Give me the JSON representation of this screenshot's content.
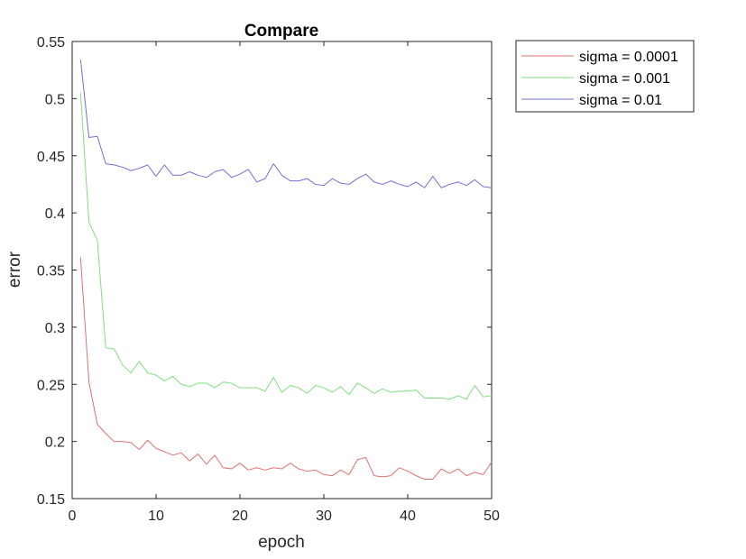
{
  "chart_data": {
    "type": "line",
    "title": "Compare",
    "xlabel": "epoch",
    "ylabel": "error",
    "xlim": [
      0,
      50
    ],
    "ylim": [
      0.15,
      0.55
    ],
    "xticks": [
      0,
      10,
      20,
      30,
      40,
      50
    ],
    "xtick_labels": [
      "0",
      "10",
      "20",
      "30",
      "40",
      "50"
    ],
    "yticks": [
      0.15,
      0.2,
      0.25,
      0.3,
      0.35,
      0.4,
      0.45,
      0.5,
      0.55
    ],
    "ytick_labels": [
      "0.15",
      "0.2",
      "0.25",
      "0.3",
      "0.35",
      "0.4",
      "0.45",
      "0.5",
      "0.55"
    ],
    "grid": false,
    "legend_position": "outside-top-right",
    "x": [
      1,
      2,
      3,
      4,
      5,
      6,
      7,
      8,
      9,
      10,
      11,
      12,
      13,
      14,
      15,
      16,
      17,
      18,
      19,
      20,
      21,
      22,
      23,
      24,
      25,
      26,
      27,
      28,
      29,
      30,
      31,
      32,
      33,
      34,
      35,
      36,
      37,
      38,
      39,
      40,
      41,
      42,
      43,
      44,
      45,
      46,
      47,
      48,
      49,
      50
    ],
    "series": [
      {
        "name": "sigma = 0.0001",
        "color": "#e07070",
        "values": [
          0.361,
          0.252,
          0.215,
          0.207,
          0.2,
          0.2,
          0.199,
          0.193,
          0.201,
          0.194,
          0.191,
          0.188,
          0.19,
          0.183,
          0.189,
          0.18,
          0.188,
          0.177,
          0.176,
          0.181,
          0.175,
          0.177,
          0.175,
          0.177,
          0.176,
          0.181,
          0.176,
          0.174,
          0.175,
          0.171,
          0.17,
          0.175,
          0.171,
          0.184,
          0.186,
          0.17,
          0.169,
          0.17,
          0.177,
          0.174,
          0.17,
          0.167,
          0.167,
          0.176,
          0.172,
          0.176,
          0.17,
          0.173,
          0.171,
          0.182
        ]
      },
      {
        "name": "sigma = 0.001",
        "color": "#7ee07e",
        "values": [
          0.505,
          0.392,
          0.376,
          0.282,
          0.281,
          0.267,
          0.26,
          0.27,
          0.26,
          0.258,
          0.253,
          0.257,
          0.25,
          0.248,
          0.251,
          0.251,
          0.247,
          0.252,
          0.251,
          0.247,
          0.247,
          0.247,
          0.244,
          0.256,
          0.243,
          0.249,
          0.247,
          0.242,
          0.249,
          0.247,
          0.243,
          0.248,
          0.241,
          0.251,
          0.247,
          0.242,
          0.246,
          0.243,
          0.244,
          0.244,
          0.245,
          0.238,
          0.238,
          0.238,
          0.237,
          0.24,
          0.237,
          0.249,
          0.239,
          0.24
        ]
      },
      {
        "name": "sigma = 0.01",
        "color": "#7070d8",
        "values": [
          0.534,
          0.466,
          0.467,
          0.443,
          0.442,
          0.44,
          0.437,
          0.439,
          0.442,
          0.432,
          0.442,
          0.433,
          0.433,
          0.436,
          0.433,
          0.431,
          0.436,
          0.438,
          0.431,
          0.434,
          0.438,
          0.427,
          0.43,
          0.443,
          0.433,
          0.428,
          0.428,
          0.43,
          0.425,
          0.424,
          0.43,
          0.426,
          0.425,
          0.43,
          0.434,
          0.427,
          0.425,
          0.428,
          0.425,
          0.423,
          0.427,
          0.422,
          0.432,
          0.422,
          0.425,
          0.427,
          0.424,
          0.429,
          0.423,
          0.422
        ]
      }
    ]
  }
}
